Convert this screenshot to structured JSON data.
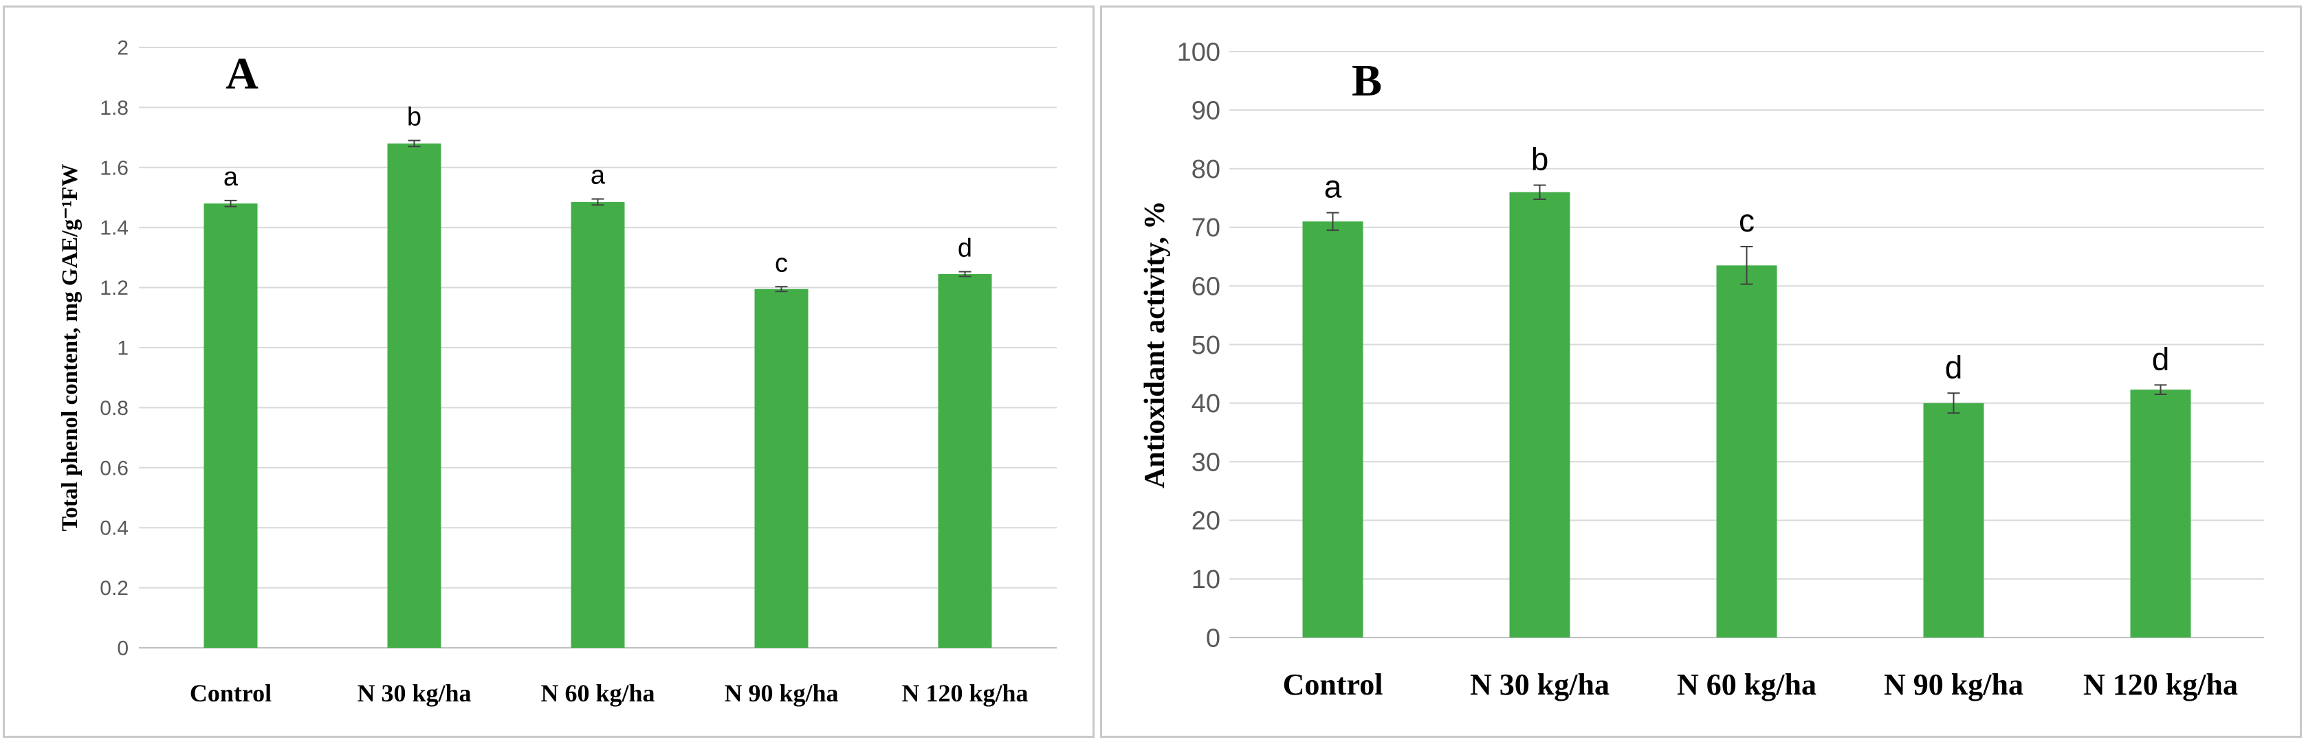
{
  "colors": {
    "bar": "#43ae48",
    "grid": "#d9d9d9",
    "error": "#404040"
  },
  "chart_data": [
    {
      "type": "bar",
      "panel_label": "A",
      "ylabel": "Total phenol content, mg GAE/g⁻¹FW",
      "xlabel": "",
      "ylim": [
        0,
        2
      ],
      "yticks": [
        "0",
        "0.2",
        "0.4",
        "0.6",
        "0.8",
        "1",
        "1.2",
        "1.4",
        "1.6",
        "1.8",
        "2"
      ],
      "categories": [
        "Control",
        "N 30 kg/ha",
        "N 60 kg/ha",
        "N 90 kg/ha",
        "N 120 kg/ha"
      ],
      "values": [
        1.48,
        1.68,
        1.485,
        1.195,
        1.245
      ],
      "errors": [
        0.01,
        0.01,
        0.01,
        0.008,
        0.008
      ],
      "significance": [
        "a",
        "b",
        "a",
        "c",
        "d"
      ],
      "grid": true
    },
    {
      "type": "bar",
      "panel_label": "B",
      "ylabel": "Antioxidant activity, %",
      "xlabel": "",
      "ylim": [
        0,
        100
      ],
      "yticks": [
        "0",
        "10",
        "20",
        "30",
        "40",
        "50",
        "60",
        "70",
        "80",
        "90",
        "100"
      ],
      "categories": [
        "Control",
        "N 30 kg/ha",
        "N 60 kg/ha",
        "N 90 kg/ha",
        "N 120 kg/ha"
      ],
      "values": [
        71,
        76,
        63.5,
        40,
        42.3
      ],
      "errors": [
        1.5,
        1.2,
        3.2,
        1.7,
        0.8
      ],
      "significance": [
        "a",
        "b",
        "c",
        "d",
        "d"
      ],
      "grid": true
    }
  ]
}
